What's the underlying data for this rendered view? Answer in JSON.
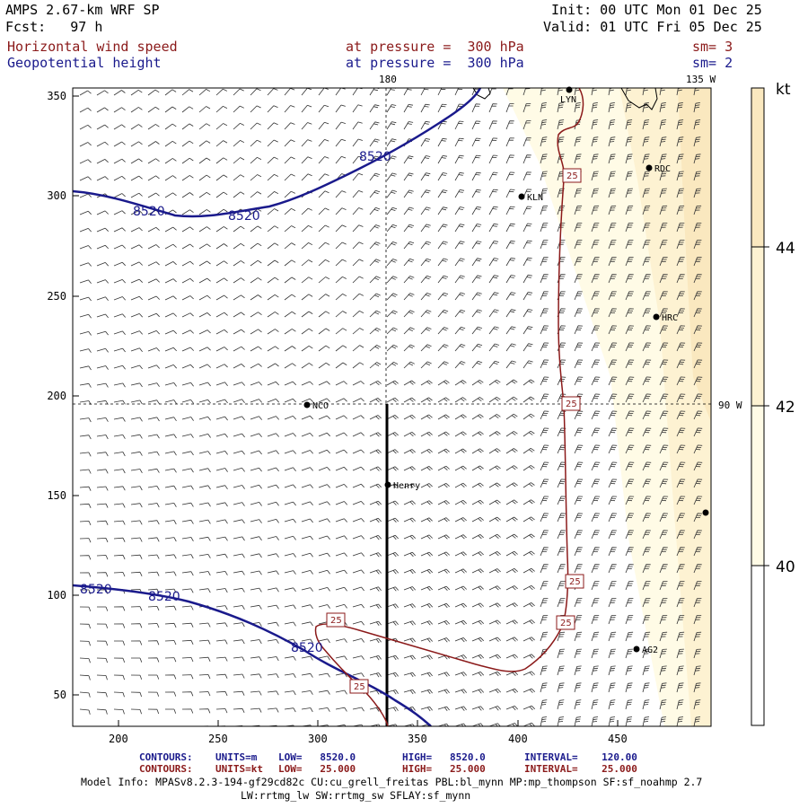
{
  "header": {
    "model_line": "AMPS 2.67-km WRF SP",
    "forecast_line": "Fcst:   97 h",
    "init_line": "Init: 00 UTC Mon 01 Dec 25",
    "valid_line": "Valid: 01 UTC Fri 05 Dec 25",
    "field1_name": "Horizontal wind speed",
    "field1_level": "at pressure =  300 hPa",
    "field1_smooth": "sm= 3",
    "field2_name": "Geopotential height",
    "field2_level": "at pressure =  300 hPa",
    "field2_smooth": "sm= 2"
  },
  "colors": {
    "wind_contour": "#8b1a1a",
    "height_contour": "#1a1a8c",
    "shade_light": "#fffbe6",
    "shade_mid": "#fdf2d2",
    "shade_dark": "#fae8bf"
  },
  "map": {
    "x_ticks": [
      "200",
      "250",
      "300",
      "350",
      "400",
      "450"
    ],
    "y_ticks": [
      "350",
      "300",
      "250",
      "200",
      "150",
      "100",
      "50"
    ],
    "grid_labels": {
      "lon_180": "180",
      "lon_135w": "135 W",
      "lon_90w": "90 W"
    },
    "stations": [
      {
        "name": "LYN",
        "label": "LYN"
      },
      {
        "name": "RDC",
        "label": "RDC"
      },
      {
        "name": "KLN",
        "label": "KLN"
      },
      {
        "name": "HRC",
        "label": "HRC"
      },
      {
        "name": "NCO",
        "label": "NCO"
      },
      {
        "name": "Henry",
        "label": "Henry"
      },
      {
        "name": "AG2",
        "label": "AG2"
      },
      {
        "name": "edge",
        "label": ""
      }
    ],
    "height_contour_labels": [
      "8520",
      "8520",
      "8520",
      "8520",
      "8520",
      "8520"
    ],
    "wind_contour_labels": [
      "25",
      "25",
      "25",
      "25",
      "25",
      "25"
    ]
  },
  "colorbar": {
    "unit": "kt",
    "labels": [
      "44",
      "42",
      "40"
    ]
  },
  "footer": {
    "contour1_prefix": "CONTOURS:",
    "contour1_units": "UNITS=m",
    "contour1_low": "LOW=   8520.0",
    "contour1_high": "HIGH=   8520.0",
    "contour1_interval": "INTERVAL=    120.00",
    "contour2_prefix": "CONTOURS:",
    "contour2_units": "UNITS=kt",
    "contour2_low": "LOW=   25.000",
    "contour2_high": "HIGH=   25.000",
    "contour2_interval": "INTERVAL=    25.000",
    "model_info": "Model Info: MPASv8.2.3-194-gf29cd82c CU:cu_grell_freitas PBL:bl_mynn MP:mp_thompson SF:sf_noahmp 2.7",
    "model_info2": "LW:rrtmg_lw SW:rrtmg_sw SFLAY:sf_mynn"
  }
}
